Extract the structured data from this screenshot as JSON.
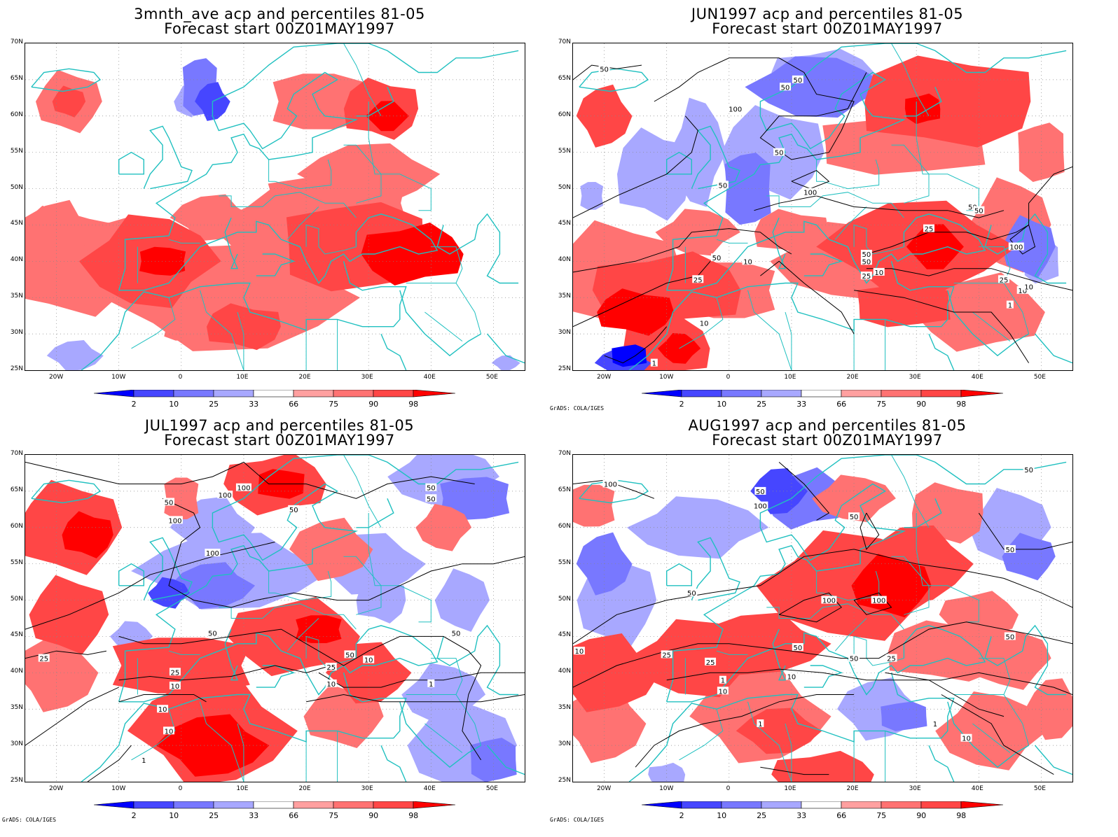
{
  "panels": [
    {
      "id": "3month",
      "title_line1": "3mnth_ave acp and percentiles 81-05",
      "title_line2": "Forecast start 00Z01MAY1997",
      "credit": "",
      "contour_labels": []
    },
    {
      "id": "jun",
      "title_line1": "JUN1997 acp and percentiles 81-05",
      "title_line2": "Forecast start 00Z01MAY1997",
      "credit": "GrADS: COLA/IGES",
      "contour_labels": [
        "50",
        "50",
        "50",
        "100",
        "50",
        "50",
        "100",
        "50",
        "50",
        "50",
        "25",
        "100",
        "50",
        "10",
        "50",
        "25",
        "10",
        "25",
        "10",
        "1",
        "10",
        "1",
        "25",
        "10"
      ]
    },
    {
      "id": "jul",
      "title_line1": "JUL1997 acp and percentiles 81-05",
      "title_line2": "Forecast start 00Z01MAY1997",
      "credit": "GrADS: COLA/IGES",
      "contour_labels": [
        "100",
        "100",
        "50",
        "100",
        "50",
        "50",
        "50",
        "100",
        "50",
        "50",
        "25",
        "25",
        "10",
        "50",
        "25",
        "10",
        "10",
        "10",
        "10",
        "1",
        "1"
      ]
    },
    {
      "id": "aug",
      "title_line1": "AUG1997 acp and percentiles 81-05",
      "title_line2": "Forecast start 00Z01MAY1997",
      "credit": "GrADS: COLA/IGES",
      "contour_labels": [
        "50",
        "100",
        "50",
        "100",
        "50",
        "50",
        "50",
        "100",
        "100",
        "25",
        "50",
        "25",
        "50",
        "50",
        "10",
        "25",
        "10",
        "10",
        "1",
        "1",
        "1",
        "10"
      ]
    }
  ],
  "lat_labels": [
    "70N",
    "65N",
    "60N",
    "55N",
    "50N",
    "45N",
    "40N",
    "35N",
    "30N",
    "25N"
  ],
  "lon_labels": [
    "20W",
    "10W",
    "0",
    "10E",
    "20E",
    "30E",
    "40E",
    "50E"
  ],
  "colorbar_labels": [
    "2",
    "10",
    "25",
    "33",
    "66",
    "75",
    "90",
    "98"
  ],
  "colorbar_colors": [
    "#0000ff",
    "#4646ff",
    "#7878ff",
    "#a8a8ff",
    "#ffffff",
    "#ffa0a0",
    "#ff7272",
    "#ff4646",
    "#ff0000"
  ],
  "coastline_color": "#20c0c0"
}
